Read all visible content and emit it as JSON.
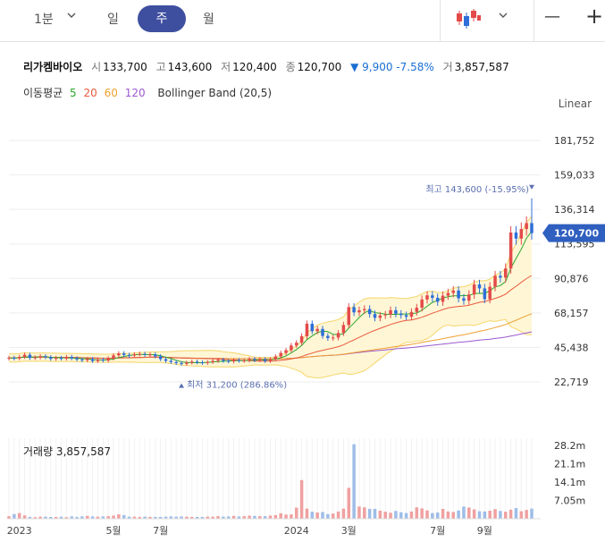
{
  "toolbar": {
    "intervals": [
      {
        "label": "1분",
        "x": 38
      },
      {
        "label": "일",
        "x": 120
      },
      {
        "label": "주",
        "x": 0
      },
      {
        "label": "월",
        "x": 227
      }
    ],
    "active": "주",
    "zoom_out": "—",
    "zoom_in": "+"
  },
  "stock": {
    "name": "리가켐바이오",
    "open_label": "시",
    "open": "133,700",
    "high_label": "고",
    "high": "143,600",
    "low_label": "저",
    "low": "120,400",
    "close_label": "종",
    "close": "120,700",
    "change": "▼ 9,900 -7.58%",
    "volume_label": "거",
    "volume": "3,857,587"
  },
  "indicators": {
    "ma_label": "이동평균",
    "ma_periods": [
      "5",
      "20",
      "60",
      "120"
    ],
    "ma_colors": [
      "#2aa72a",
      "#e85a3c",
      "#f0a030",
      "#9b59d0"
    ],
    "bollinger_label": "Bollinger Band (20,5)"
  },
  "scale_mode": "Linear",
  "colors": {
    "up": "#e34a4a",
    "down": "#2f6fd8",
    "band_fill": "#fff6d6",
    "band_line": "#f5d66a",
    "price_tag": "#2f5fbf"
  },
  "chart_data": {
    "type": "candlestick",
    "interval": "weekly",
    "y_ticks": [
      181752,
      159033,
      136314,
      113595,
      90876,
      68157,
      45438,
      22719
    ],
    "y_tick_labels": [
      "181,752",
      "159,033",
      "136,314",
      "113,595",
      "90,876",
      "68,157",
      "45,438",
      "22,719"
    ],
    "ylim": [
      10000,
      195000
    ],
    "x_labels": [
      {
        "label": "2023",
        "index": 2
      },
      {
        "label": "5월",
        "index": 20
      },
      {
        "label": "7월",
        "index": 29
      },
      {
        "label": "2024",
        "index": 55
      },
      {
        "label": "3월",
        "index": 65
      },
      {
        "label": "7월",
        "index": 82
      },
      {
        "label": "9월",
        "index": 91
      }
    ],
    "last_price": 120700,
    "last_price_label": "120,700",
    "max_annotation": {
      "text": "최고 143,600 (-15.95%)",
      "value": 143600,
      "index": 100
    },
    "min_annotation": {
      "text": "최저 31,200 (286.86%)",
      "value": 31200,
      "index": 33
    },
    "volume_title": "거래량 3,857,587",
    "volume_ticks": [
      28.2,
      21.1,
      14.1,
      7.05
    ],
    "volume_tick_labels": [
      "28.2m",
      "21.1m",
      "14.1m",
      "7.05m"
    ],
    "volume_max": 31,
    "closes": [
      38600,
      38200,
      39200,
      40600,
      38500,
      38900,
      39600,
      39000,
      37900,
      38500,
      38100,
      39200,
      38300,
      37500,
      37000,
      37800,
      36500,
      37400,
      36800,
      38200,
      40200,
      41500,
      40500,
      40100,
      40900,
      41200,
      40600,
      40800,
      39600,
      37700,
      36600,
      35800,
      35100,
      34600,
      35400,
      36100,
      35600,
      35200,
      35800,
      36600,
      37300,
      36600,
      36200,
      37100,
      36600,
      36800,
      37800,
      37000,
      37700,
      36500,
      37600,
      39500,
      41800,
      43600,
      46700,
      48500,
      52800,
      61000,
      56100,
      57600,
      53000,
      51600,
      51900,
      54900,
      60200,
      72000,
      68500,
      69900,
      70700,
      67400,
      64900,
      66500,
      67100,
      69900,
      67600,
      66700,
      65600,
      68800,
      71600,
      77000,
      79700,
      78100,
      75500,
      79500,
      81300,
      82900,
      77800,
      76200,
      80300,
      86900,
      84300,
      77200,
      85400,
      92600,
      91400,
      97400,
      121100,
      117100,
      123400,
      127300,
      120700
    ],
    "vols": [
      1.0,
      1.8,
      2.2,
      1.3,
      0.7,
      0.6,
      0.8,
      0.8,
      0.7,
      0.7,
      0.8,
      0.6,
      0.9,
      0.7,
      0.9,
      1.1,
      0.9,
      0.8,
      0.9,
      1.0,
      1.2,
      1.7,
      1.4,
      0.8,
      0.8,
      0.7,
      0.8,
      0.7,
      0.7,
      0.7,
      0.8,
      0.9,
      0.8,
      0.9,
      0.8,
      0.7,
      0.7,
      0.7,
      0.8,
      0.8,
      1.0,
      0.8,
      0.9,
      1.1,
      0.9,
      1.0,
      1.2,
      1.1,
      1.0,
      1.0,
      1.2,
      1.4,
      2.1,
      1.6,
      1.7,
      4.3,
      14.9,
      3.9,
      2.7,
      2.4,
      2.6,
      1.8,
      2.0,
      2.8,
      3.9,
      11.9,
      28.7,
      4.7,
      4.4,
      3.8,
      3.8,
      3.1,
      2.7,
      2.3,
      3.0,
      2.5,
      2.2,
      2.8,
      4.4,
      4.0,
      3.2,
      2.2,
      2.4,
      3.8,
      2.8,
      2.6,
      3.2,
      4.7,
      4.3,
      3.6,
      2.9,
      2.8,
      3.1,
      3.7,
      3.0,
      2.7,
      3.5,
      4.1,
      2.9,
      3.4,
      3.9
    ]
  }
}
